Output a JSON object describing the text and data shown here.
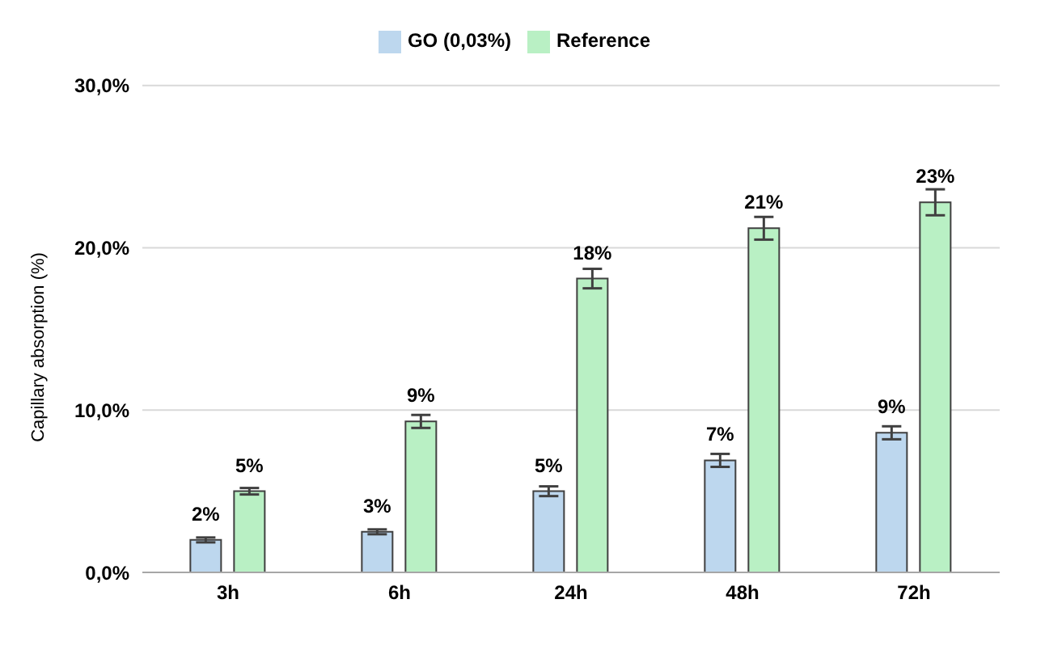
{
  "chart_data": {
    "type": "bar",
    "ylabel": "Capillary absorption (%)",
    "categories": [
      "3h",
      "6h",
      "24h",
      "48h",
      "72h"
    ],
    "series": [
      {
        "name": "GO (0,03%)",
        "color": "#bdd7ee",
        "values": [
          2.0,
          2.5,
          5.0,
          6.9,
          8.6
        ],
        "errors": [
          0.15,
          0.15,
          0.3,
          0.4,
          0.4
        ],
        "value_labels": [
          "2%",
          "3%",
          "5%",
          "7%",
          "9%"
        ]
      },
      {
        "name": "Reference",
        "color": "#b9f0c4",
        "values": [
          5.0,
          9.3,
          18.1,
          21.2,
          22.8
        ],
        "errors": [
          0.2,
          0.4,
          0.6,
          0.7,
          0.8
        ],
        "value_labels": [
          "5%",
          "9%",
          "18%",
          "21%",
          "23%"
        ]
      }
    ],
    "ylim": [
      0,
      30
    ],
    "yticks": [
      {
        "value": 0,
        "label": "0,0%"
      },
      {
        "value": 10,
        "label": "10,0%"
      },
      {
        "value": 20,
        "label": "20,0%"
      },
      {
        "value": 30,
        "label": "30,0%"
      }
    ],
    "grid": "y",
    "legend": "top"
  }
}
